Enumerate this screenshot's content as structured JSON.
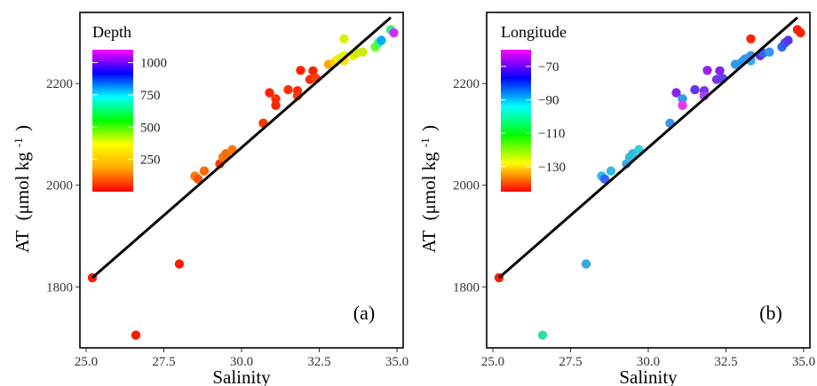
{
  "colors": {
    "regression_line": "#000000",
    "frame": "#000000",
    "gradient_depth": [
      "#ff0000",
      "#ffaa00",
      "#ffff00",
      "#00ff00",
      "#00ffff",
      "#0000ff",
      "#ff00ff"
    ],
    "gradient_longitude": [
      "#ff0000",
      "#ffff00",
      "#00ff00",
      "#00ffff",
      "#0000ff",
      "#ff00ff"
    ]
  },
  "chart_data": [
    {
      "type": "scatter",
      "panel_label": "(a)",
      "xlabel": "Salinity",
      "ylabel_main": "AT",
      "ylabel_unit": "(μmol kg",
      "ylabel_exp": "-1",
      "ylabel_close": ")",
      "xlim": [
        24.8,
        35.2
      ],
      "ylim": [
        1680,
        2340
      ],
      "x_ticks": [
        25.0,
        27.5,
        30.0,
        32.5,
        35.0
      ],
      "x_tick_labels": [
        "25.0",
        "27.5",
        "30.0",
        "32.5",
        "35.0"
      ],
      "y_ticks": [
        1800,
        2000,
        2200
      ],
      "y_tick_labels": [
        "1800",
        "2000",
        "2200"
      ],
      "grid": false,
      "legend": {
        "title": "Depth",
        "placement": "top-left",
        "range": [
          0,
          1100
        ],
        "ticks": [
          250,
          500,
          750,
          1000
        ],
        "tick_labels": [
          "250",
          "500",
          "750",
          "1000"
        ]
      },
      "regression_line": {
        "x": [
          25.2,
          34.8
        ],
        "y": [
          1818,
          2330
        ]
      },
      "points": [
        {
          "x": 25.2,
          "y": 1818,
          "color": "#ff1a00"
        },
        {
          "x": 26.6,
          "y": 1705,
          "color": "#ff1a00"
        },
        {
          "x": 28.0,
          "y": 1845,
          "color": "#ff1a00"
        },
        {
          "x": 28.5,
          "y": 2018,
          "color": "#ff7a00"
        },
        {
          "x": 28.6,
          "y": 2012,
          "color": "#ff5500"
        },
        {
          "x": 28.8,
          "y": 2028,
          "color": "#ff6600"
        },
        {
          "x": 29.3,
          "y": 2042,
          "color": "#ff3300"
        },
        {
          "x": 29.4,
          "y": 2055,
          "color": "#ff7700"
        },
        {
          "x": 29.5,
          "y": 2062,
          "color": "#ff6a00"
        },
        {
          "x": 29.7,
          "y": 2070,
          "color": "#ff7a00"
        },
        {
          "x": 30.7,
          "y": 2122,
          "color": "#ff3300"
        },
        {
          "x": 30.9,
          "y": 2182,
          "color": "#ff2200"
        },
        {
          "x": 31.1,
          "y": 2170,
          "color": "#ff3300"
        },
        {
          "x": 31.1,
          "y": 2157,
          "color": "#ff2200"
        },
        {
          "x": 31.5,
          "y": 2188,
          "color": "#ff3300"
        },
        {
          "x": 31.8,
          "y": 2186,
          "color": "#ff2a00"
        },
        {
          "x": 31.8,
          "y": 2176,
          "color": "#ff3a00"
        },
        {
          "x": 31.9,
          "y": 2226,
          "color": "#ff2200"
        },
        {
          "x": 32.2,
          "y": 2208,
          "color": "#ff2a00"
        },
        {
          "x": 32.3,
          "y": 2225,
          "color": "#ff2200"
        },
        {
          "x": 32.4,
          "y": 2210,
          "color": "#ff4400"
        },
        {
          "x": 32.8,
          "y": 2238,
          "color": "#ffaa00"
        },
        {
          "x": 33.0,
          "y": 2242,
          "color": "#ffcc00"
        },
        {
          "x": 33.1,
          "y": 2248,
          "color": "#ffee00"
        },
        {
          "x": 33.2,
          "y": 2250,
          "color": "#ddee00"
        },
        {
          "x": 33.3,
          "y": 2245,
          "color": "#ffdd00"
        },
        {
          "x": 33.3,
          "y": 2255,
          "color": "#eeee00"
        },
        {
          "x": 33.3,
          "y": 2288,
          "color": "#ddee00"
        },
        {
          "x": 33.6,
          "y": 2255,
          "color": "#eeee00"
        },
        {
          "x": 33.7,
          "y": 2260,
          "color": "#ccee00"
        },
        {
          "x": 33.9,
          "y": 2262,
          "color": "#ccee00"
        },
        {
          "x": 34.3,
          "y": 2272,
          "color": "#66ff33"
        },
        {
          "x": 34.4,
          "y": 2280,
          "color": "#33ff66"
        },
        {
          "x": 34.5,
          "y": 2285,
          "color": "#00aaff"
        },
        {
          "x": 34.8,
          "y": 2306,
          "color": "#33ee88"
        },
        {
          "x": 34.9,
          "y": 2300,
          "color": "#cc33ff"
        }
      ]
    },
    {
      "type": "scatter",
      "panel_label": "(b)",
      "xlabel": "Salinity",
      "ylabel_main": "AT",
      "ylabel_unit": "(μmol kg",
      "ylabel_exp": "-1",
      "ylabel_close": ")",
      "xlim": [
        24.8,
        35.2
      ],
      "ylim": [
        1680,
        2340
      ],
      "x_ticks": [
        25.0,
        27.5,
        30.0,
        32.5,
        35.0
      ],
      "x_tick_labels": [
        "25.0",
        "27.5",
        "30.0",
        "32.5",
        "35.0"
      ],
      "y_ticks": [
        1800,
        2000,
        2200
      ],
      "y_tick_labels": [
        "1800",
        "2000",
        "2200"
      ],
      "grid": false,
      "legend": {
        "title": "Longitude",
        "placement": "top-left",
        "range": [
          -145,
          -60
        ],
        "ticks": [
          -130,
          -110,
          -90,
          -70
        ],
        "tick_labels": [
          "−130",
          "−110",
          "−90",
          "−70"
        ]
      },
      "regression_line": {
        "x": [
          25.2,
          34.8
        ],
        "y": [
          1818,
          2330
        ]
      },
      "points": [
        {
          "x": 25.2,
          "y": 1818,
          "color": "#ff1a00"
        },
        {
          "x": 26.6,
          "y": 1705,
          "color": "#33dd99"
        },
        {
          "x": 28.0,
          "y": 1845,
          "color": "#33aadd"
        },
        {
          "x": 28.5,
          "y": 2018,
          "color": "#33bbdd"
        },
        {
          "x": 28.6,
          "y": 2012,
          "color": "#3366ff"
        },
        {
          "x": 28.8,
          "y": 2028,
          "color": "#33bbdd"
        },
        {
          "x": 29.3,
          "y": 2042,
          "color": "#33aaee"
        },
        {
          "x": 29.4,
          "y": 2055,
          "color": "#33bbdd"
        },
        {
          "x": 29.5,
          "y": 2062,
          "color": "#33bbdd"
        },
        {
          "x": 29.7,
          "y": 2070,
          "color": "#33ccdd"
        },
        {
          "x": 30.7,
          "y": 2122,
          "color": "#3399ee"
        },
        {
          "x": 30.9,
          "y": 2182,
          "color": "#8822ee"
        },
        {
          "x": 31.1,
          "y": 2170,
          "color": "#3399ee"
        },
        {
          "x": 31.1,
          "y": 2157,
          "color": "#ee33ee"
        },
        {
          "x": 31.5,
          "y": 2188,
          "color": "#6633ee"
        },
        {
          "x": 31.8,
          "y": 2186,
          "color": "#7733ee"
        },
        {
          "x": 31.8,
          "y": 2176,
          "color": "#aa44ee"
        },
        {
          "x": 31.9,
          "y": 2226,
          "color": "#9922ee"
        },
        {
          "x": 32.2,
          "y": 2208,
          "color": "#7733ee"
        },
        {
          "x": 32.3,
          "y": 2225,
          "color": "#8822ee"
        },
        {
          "x": 32.4,
          "y": 2210,
          "color": "#5544ee"
        },
        {
          "x": 32.8,
          "y": 2238,
          "color": "#3399ee"
        },
        {
          "x": 33.0,
          "y": 2242,
          "color": "#3399ee"
        },
        {
          "x": 33.1,
          "y": 2248,
          "color": "#3399ee"
        },
        {
          "x": 33.2,
          "y": 2250,
          "color": "#3399ee"
        },
        {
          "x": 33.3,
          "y": 2245,
          "color": "#33aaee"
        },
        {
          "x": 33.3,
          "y": 2255,
          "color": "#3399ee"
        },
        {
          "x": 33.3,
          "y": 2288,
          "color": "#ff2200"
        },
        {
          "x": 33.6,
          "y": 2255,
          "color": "#5533ee"
        },
        {
          "x": 33.7,
          "y": 2260,
          "color": "#3366ee"
        },
        {
          "x": 33.9,
          "y": 2262,
          "color": "#3399ee"
        },
        {
          "x": 34.3,
          "y": 2272,
          "color": "#3366ee"
        },
        {
          "x": 34.4,
          "y": 2280,
          "color": "#3355ee"
        },
        {
          "x": 34.5,
          "y": 2285,
          "color": "#5533ee"
        },
        {
          "x": 34.8,
          "y": 2306,
          "color": "#ff2200"
        },
        {
          "x": 34.9,
          "y": 2300,
          "color": "#ff2200"
        }
      ]
    }
  ]
}
